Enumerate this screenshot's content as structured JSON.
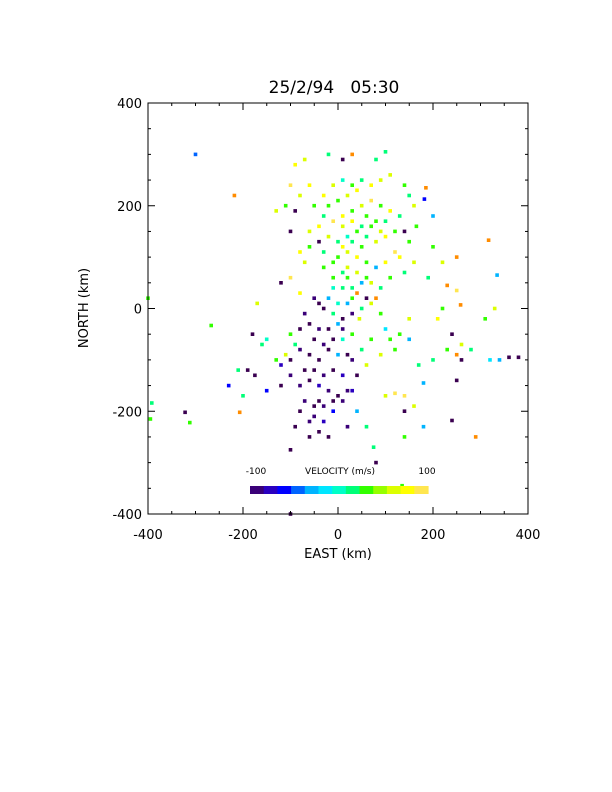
{
  "chart_data": {
    "type": "scatter",
    "title": "25/2/94   05:30",
    "xlabel": "EAST (km)",
    "ylabel": "NORTH (km)",
    "xlim": [
      -400,
      400
    ],
    "ylim": [
      -400,
      400
    ],
    "xticks": [
      -400,
      -200,
      0,
      200,
      400
    ],
    "yticks": [
      -400,
      -200,
      0,
      200,
      400
    ],
    "xtick_labels": [
      "-400",
      "-200",
      "0",
      "200",
      "400"
    ],
    "ytick_labels": [
      "-400",
      "-200",
      "0",
      "200",
      "400"
    ],
    "grid": false,
    "colorbar": {
      "title": "VELOCITY (m/s)",
      "min_label": "-100",
      "max_label": "100",
      "range": [
        -100,
        100
      ],
      "colors": [
        "#3a0078",
        "#2a00c0",
        "#0000ff",
        "#0064ff",
        "#00b4ff",
        "#00e6ff",
        "#00ffc8",
        "#00ff78",
        "#32ff00",
        "#96ff00",
        "#dcff00",
        "#ffff00",
        "#ffe650"
      ]
    },
    "points": [
      {
        "x": -300,
        "y": 300,
        "v": -55
      },
      {
        "x": -218,
        "y": 220,
        "v": 120
      },
      {
        "x": -267,
        "y": -33,
        "v": 40
      },
      {
        "x": -400,
        "y": 20,
        "v": 40
      },
      {
        "x": -392,
        "y": -184,
        "v": 20
      },
      {
        "x": -395,
        "y": -215,
        "v": 25
      },
      {
        "x": -322,
        "y": -202,
        "v": -110
      },
      {
        "x": -312,
        "y": -222,
        "v": 25
      },
      {
        "x": -207,
        "y": -202,
        "v": 120
      },
      {
        "x": -230,
        "y": -150,
        "v": -70
      },
      {
        "x": -210,
        "y": -120,
        "v": 20
      },
      {
        "x": -175,
        "y": -130,
        "v": -110
      },
      {
        "x": -150,
        "y": -160,
        "v": -60
      },
      {
        "x": -120,
        "y": -110,
        "v": -90
      },
      {
        "x": -100,
        "y": -100,
        "v": -110
      },
      {
        "x": -80,
        "y": -150,
        "v": -100
      },
      {
        "x": -90,
        "y": -230,
        "v": -110
      },
      {
        "x": -100,
        "y": -275,
        "v": -110
      },
      {
        "x": -60,
        "y": -250,
        "v": -110
      },
      {
        "x": -50,
        "y": -210,
        "v": -100
      },
      {
        "x": -40,
        "y": -180,
        "v": -110
      },
      {
        "x": -30,
        "y": -220,
        "v": -90
      },
      {
        "x": -20,
        "y": -250,
        "v": -110
      },
      {
        "x": -10,
        "y": -200,
        "v": -60
      },
      {
        "x": 10,
        "y": -180,
        "v": -100
      },
      {
        "x": 30,
        "y": -160,
        "v": -80
      },
      {
        "x": 40,
        "y": -200,
        "v": -40
      },
      {
        "x": 20,
        "y": -230,
        "v": -100
      },
      {
        "x": 60,
        "y": -230,
        "v": 20
      },
      {
        "x": 75,
        "y": -270,
        "v": 10
      },
      {
        "x": 80,
        "y": -300,
        "v": -110
      },
      {
        "x": 135,
        "y": -345,
        "v": 40
      },
      {
        "x": 140,
        "y": -250,
        "v": 40
      },
      {
        "x": 100,
        "y": -170,
        "v": 60
      },
      {
        "x": 120,
        "y": -165,
        "v": 100
      },
      {
        "x": 140,
        "y": -170,
        "v": 100
      },
      {
        "x": 160,
        "y": -190,
        "v": 60
      },
      {
        "x": 140,
        "y": -200,
        "v": -110
      },
      {
        "x": 180,
        "y": -230,
        "v": -40
      },
      {
        "x": 240,
        "y": -218,
        "v": -110
      },
      {
        "x": 290,
        "y": -250,
        "v": 120
      },
      {
        "x": 250,
        "y": -140,
        "v": -110
      },
      {
        "x": 180,
        "y": -145,
        "v": -40
      },
      {
        "x": 170,
        "y": -110,
        "v": 20
      },
      {
        "x": 200,
        "y": -100,
        "v": 10
      },
      {
        "x": 230,
        "y": -80,
        "v": 40
      },
      {
        "x": 260,
        "y": -100,
        "v": -110
      },
      {
        "x": 250,
        "y": -90,
        "v": 120
      },
      {
        "x": 240,
        "y": -50,
        "v": -110
      },
      {
        "x": 260,
        "y": -70,
        "v": 60
      },
      {
        "x": 280,
        "y": -80,
        "v": 20
      },
      {
        "x": 310,
        "y": -20,
        "v": 40
      },
      {
        "x": 320,
        "y": -100,
        "v": -10
      },
      {
        "x": 340,
        "y": -100,
        "v": -40
      },
      {
        "x": 360,
        "y": -95,
        "v": -110
      },
      {
        "x": 380,
        "y": -95,
        "v": -110
      },
      {
        "x": 330,
        "y": 0,
        "v": 60
      },
      {
        "x": 335,
        "y": 65,
        "v": -40
      },
      {
        "x": 317,
        "y": 133,
        "v": 120
      },
      {
        "x": 258,
        "y": 7,
        "v": 120
      },
      {
        "x": 250,
        "y": 35,
        "v": 100
      },
      {
        "x": 230,
        "y": 45,
        "v": 120
      },
      {
        "x": 220,
        "y": 0,
        "v": 40
      },
      {
        "x": 210,
        "y": -20,
        "v": 80
      },
      {
        "x": 190,
        "y": 60,
        "v": 20
      },
      {
        "x": 200,
        "y": 180,
        "v": -40
      },
      {
        "x": 182,
        "y": 213,
        "v": -60
      },
      {
        "x": 185,
        "y": 235,
        "v": 120
      },
      {
        "x": 165,
        "y": 160,
        "v": 40
      },
      {
        "x": 150,
        "y": 130,
        "v": 30
      },
      {
        "x": 140,
        "y": 150,
        "v": -110
      },
      {
        "x": 130,
        "y": 100,
        "v": 80
      },
      {
        "x": 160,
        "y": 90,
        "v": 60
      },
      {
        "x": 140,
        "y": 70,
        "v": 20
      },
      {
        "x": 150,
        "y": -20,
        "v": 60
      },
      {
        "x": 130,
        "y": -50,
        "v": 40
      },
      {
        "x": 150,
        "y": -60,
        "v": -40
      },
      {
        "x": 120,
        "y": -80,
        "v": 40
      },
      {
        "x": 110,
        "y": -60,
        "v": 30
      },
      {
        "x": 100,
        "y": -40,
        "v": -10
      },
      {
        "x": 90,
        "y": -10,
        "v": 40
      },
      {
        "x": 80,
        "y": 20,
        "v": 120
      },
      {
        "x": 70,
        "y": 50,
        "v": 60
      },
      {
        "x": 60,
        "y": 20,
        "v": -110
      },
      {
        "x": 50,
        "y": 50,
        "v": -40
      },
      {
        "x": 45,
        "y": -20,
        "v": 60
      },
      {
        "x": 30,
        "y": -50,
        "v": 40
      },
      {
        "x": 20,
        "y": -90,
        "v": -110
      },
      {
        "x": 10,
        "y": -60,
        "v": 0
      },
      {
        "x": 0,
        "y": -30,
        "v": -40
      },
      {
        "x": -10,
        "y": -10,
        "v": 20
      },
      {
        "x": -20,
        "y": -40,
        "v": -110
      },
      {
        "x": -30,
        "y": -70,
        "v": -100
      },
      {
        "x": -40,
        "y": -100,
        "v": -110
      },
      {
        "x": -50,
        "y": -60,
        "v": -110
      },
      {
        "x": -60,
        "y": -30,
        "v": -110
      },
      {
        "x": -70,
        "y": -10,
        "v": -100
      },
      {
        "x": -80,
        "y": -40,
        "v": -110
      },
      {
        "x": -90,
        "y": -70,
        "v": 10
      },
      {
        "x": -100,
        "y": -50,
        "v": 40
      },
      {
        "x": -110,
        "y": -90,
        "v": 60
      },
      {
        "x": -130,
        "y": -100,
        "v": 30
      },
      {
        "x": -150,
        "y": -60,
        "v": 0
      },
      {
        "x": -160,
        "y": -70,
        "v": 20
      },
      {
        "x": -170,
        "y": 10,
        "v": 60
      },
      {
        "x": -180,
        "y": -50,
        "v": -110
      },
      {
        "x": -190,
        "y": -120,
        "v": -110
      },
      {
        "x": -200,
        "y": -170,
        "v": 20
      },
      {
        "x": -40,
        "y": 10,
        "v": -110
      },
      {
        "x": -20,
        "y": 20,
        "v": -40
      },
      {
        "x": 0,
        "y": 10,
        "v": 0
      },
      {
        "x": 10,
        "y": 40,
        "v": 20
      },
      {
        "x": -10,
        "y": 60,
        "v": 40
      },
      {
        "x": -30,
        "y": 80,
        "v": 40
      },
      {
        "x": -70,
        "y": 90,
        "v": 60
      },
      {
        "x": -100,
        "y": 60,
        "v": 100
      },
      {
        "x": -120,
        "y": 50,
        "v": -110
      },
      {
        "x": -80,
        "y": 30,
        "v": 80
      },
      {
        "x": -90,
        "y": 190,
        "v": -110
      },
      {
        "x": -110,
        "y": 200,
        "v": 40
      },
      {
        "x": -80,
        "y": 220,
        "v": 60
      },
      {
        "x": -60,
        "y": 240,
        "v": 80
      },
      {
        "x": -100,
        "y": 240,
        "v": 100
      },
      {
        "x": -90,
        "y": 280,
        "v": 80
      },
      {
        "x": -70,
        "y": 290,
        "v": 60
      },
      {
        "x": -20,
        "y": 300,
        "v": 10
      },
      {
        "x": 10,
        "y": 290,
        "v": -110
      },
      {
        "x": 30,
        "y": 300,
        "v": 120
      },
      {
        "x": 80,
        "y": 290,
        "v": 20
      },
      {
        "x": 100,
        "y": 305,
        "v": 10
      },
      {
        "x": 110,
        "y": 260,
        "v": 60
      },
      {
        "x": 90,
        "y": 250,
        "v": 60
      },
      {
        "x": 70,
        "y": 240,
        "v": 80
      },
      {
        "x": 50,
        "y": 250,
        "v": 20
      },
      {
        "x": 30,
        "y": 240,
        "v": 40
      },
      {
        "x": 10,
        "y": 250,
        "v": 0
      },
      {
        "x": -10,
        "y": 240,
        "v": 60
      },
      {
        "x": -30,
        "y": 220,
        "v": 80
      },
      {
        "x": -50,
        "y": 200,
        "v": 40
      },
      {
        "x": -30,
        "y": 180,
        "v": 20
      },
      {
        "x": -10,
        "y": 170,
        "v": 100
      },
      {
        "x": 10,
        "y": 180,
        "v": 80
      },
      {
        "x": 30,
        "y": 190,
        "v": 40
      },
      {
        "x": 50,
        "y": 200,
        "v": 60
      },
      {
        "x": 70,
        "y": 210,
        "v": 100
      },
      {
        "x": 90,
        "y": 200,
        "v": 40
      },
      {
        "x": 110,
        "y": 190,
        "v": 80
      },
      {
        "x": 130,
        "y": 180,
        "v": 20
      },
      {
        "x": 120,
        "y": 150,
        "v": 40
      },
      {
        "x": 100,
        "y": 140,
        "v": 80
      },
      {
        "x": 80,
        "y": 130,
        "v": 60
      },
      {
        "x": 60,
        "y": 140,
        "v": 20
      },
      {
        "x": 40,
        "y": 150,
        "v": 40
      },
      {
        "x": 20,
        "y": 140,
        "v": 0
      },
      {
        "x": 0,
        "y": 130,
        "v": 20
      },
      {
        "x": -20,
        "y": 140,
        "v": 60
      },
      {
        "x": -40,
        "y": 130,
        "v": -110
      },
      {
        "x": -60,
        "y": 120,
        "v": 40
      },
      {
        "x": -80,
        "y": 110,
        "v": 80
      },
      {
        "x": -60,
        "y": 150,
        "v": 60
      },
      {
        "x": -30,
        "y": 110,
        "v": 20
      },
      {
        "x": 0,
        "y": 100,
        "v": 40
      },
      {
        "x": 20,
        "y": 110,
        "v": 60
      },
      {
        "x": 40,
        "y": 100,
        "v": 80
      },
      {
        "x": 60,
        "y": 90,
        "v": 40
      },
      {
        "x": 80,
        "y": 80,
        "v": -40
      },
      {
        "x": 100,
        "y": 90,
        "v": 80
      },
      {
        "x": 120,
        "y": 110,
        "v": 100
      },
      {
        "x": 110,
        "y": 60,
        "v": 40
      },
      {
        "x": 90,
        "y": 40,
        "v": 20
      },
      {
        "x": 70,
        "y": 10,
        "v": 60
      },
      {
        "x": 50,
        "y": 0,
        "v": 20
      },
      {
        "x": 30,
        "y": 20,
        "v": 40
      },
      {
        "x": 10,
        "y": 70,
        "v": 20
      },
      {
        "x": -10,
        "y": 40,
        "v": 0
      },
      {
        "x": 20,
        "y": 60,
        "v": 40
      },
      {
        "x": 40,
        "y": 70,
        "v": 60
      },
      {
        "x": 60,
        "y": 60,
        "v": 30
      },
      {
        "x": 30,
        "y": 40,
        "v": 20
      },
      {
        "x": 40,
        "y": 30,
        "v": 120
      },
      {
        "x": 20,
        "y": 80,
        "v": 60
      },
      {
        "x": 0,
        "y": 210,
        "v": 40
      },
      {
        "x": 20,
        "y": 220,
        "v": 60
      },
      {
        "x": 40,
        "y": 230,
        "v": 80
      },
      {
        "x": 60,
        "y": 180,
        "v": 40
      },
      {
        "x": 80,
        "y": 170,
        "v": 40
      },
      {
        "x": 100,
        "y": 170,
        "v": 20
      },
      {
        "x": -20,
        "y": 200,
        "v": 40
      },
      {
        "x": -40,
        "y": 160,
        "v": 80
      },
      {
        "x": 10,
        "y": 160,
        "v": 60
      },
      {
        "x": 30,
        "y": 170,
        "v": 80
      },
      {
        "x": 50,
        "y": 160,
        "v": 20
      },
      {
        "x": 70,
        "y": 160,
        "v": 40
      },
      {
        "x": 90,
        "y": 150,
        "v": 60
      },
      {
        "x": 50,
        "y": 120,
        "v": 40
      },
      {
        "x": 30,
        "y": 130,
        "v": 20
      },
      {
        "x": 10,
        "y": 120,
        "v": 80
      },
      {
        "x": -10,
        "y": 90,
        "v": 40
      },
      {
        "x": -50,
        "y": -120,
        "v": -110
      },
      {
        "x": -30,
        "y": -130,
        "v": -100
      },
      {
        "x": -10,
        "y": -120,
        "v": -110
      },
      {
        "x": 10,
        "y": -130,
        "v": -90
      },
      {
        "x": 30,
        "y": -100,
        "v": -100
      },
      {
        "x": 50,
        "y": -80,
        "v": 20
      },
      {
        "x": 70,
        "y": -60,
        "v": 40
      },
      {
        "x": 90,
        "y": -90,
        "v": 60
      },
      {
        "x": 60,
        "y": -110,
        "v": 60
      },
      {
        "x": 40,
        "y": -130,
        "v": -110
      },
      {
        "x": 20,
        "y": -160,
        "v": -100
      },
      {
        "x": 0,
        "y": -170,
        "v": -110
      },
      {
        "x": -20,
        "y": -160,
        "v": -100
      },
      {
        "x": -40,
        "y": -150,
        "v": -90
      },
      {
        "x": -60,
        "y": -140,
        "v": -110
      },
      {
        "x": -70,
        "y": -180,
        "v": -100
      },
      {
        "x": -50,
        "y": -190,
        "v": -110
      },
      {
        "x": -30,
        "y": -190,
        "v": -100
      },
      {
        "x": -10,
        "y": -180,
        "v": -110
      },
      {
        "x": 0,
        "y": -90,
        "v": -40
      },
      {
        "x": -20,
        "y": -80,
        "v": -110
      },
      {
        "x": -40,
        "y": -40,
        "v": -100
      },
      {
        "x": -60,
        "y": -90,
        "v": -110
      },
      {
        "x": -80,
        "y": -80,
        "v": -100
      },
      {
        "x": -70,
        "y": -120,
        "v": -110
      },
      {
        "x": -100,
        "y": -130,
        "v": -100
      },
      {
        "x": -120,
        "y": -150,
        "v": -110
      },
      {
        "x": -80,
        "y": -200,
        "v": -110
      },
      {
        "x": -60,
        "y": -220,
        "v": -100
      },
      {
        "x": -40,
        "y": -240,
        "v": -110
      },
      {
        "x": 10,
        "y": -20,
        "v": -110
      },
      {
        "x": 30,
        "y": -10,
        "v": -100
      },
      {
        "x": 20,
        "y": 10,
        "v": -40
      },
      {
        "x": -30,
        "y": 0,
        "v": -110
      },
      {
        "x": -50,
        "y": 20,
        "v": -100
      },
      {
        "x": -10,
        "y": -60,
        "v": -110
      },
      {
        "x": 10,
        "y": -40,
        "v": -100
      },
      {
        "x": -100,
        "y": -400,
        "v": -110
      },
      {
        "x": 150,
        "y": 220,
        "v": 20
      },
      {
        "x": 140,
        "y": 240,
        "v": 40
      },
      {
        "x": 160,
        "y": 200,
        "v": 60
      },
      {
        "x": -100,
        "y": 150,
        "v": -110
      },
      {
        "x": -130,
        "y": 190,
        "v": 60
      },
      {
        "x": 200,
        "y": 120,
        "v": 40
      },
      {
        "x": 250,
        "y": 100,
        "v": 120
      },
      {
        "x": 220,
        "y": 90,
        "v": 60
      }
    ]
  }
}
